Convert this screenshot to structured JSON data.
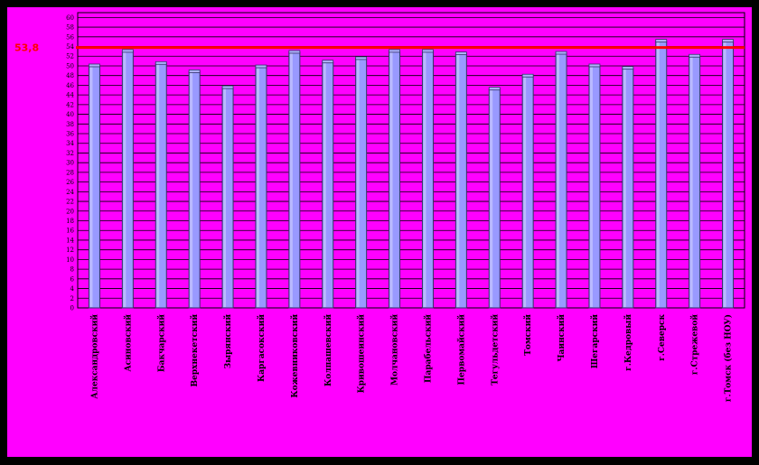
{
  "chart_data": {
    "type": "bar",
    "title": "",
    "xlabel": "",
    "ylabel": "",
    "ylim": [
      0,
      61
    ],
    "y_tick_step": 2,
    "grid": true,
    "legend": "none",
    "categories": [
      "Александровский",
      "Асиновский",
      "Бакчарский",
      "Верхнекетский",
      "Зырянский",
      "Каргасокский",
      "Кожевниковский",
      "Колпашевский",
      "Кривошеинский",
      "Молчановский",
      "Парабельский",
      "Первомайский",
      "Тегульдетский",
      "Томский",
      "Чаинский",
      "Шегарский",
      "г.Кедровый",
      "г.Северск",
      "г.Стрежевой",
      "г.Томск (без НОУ)"
    ],
    "values": [
      50,
      53,
      50.5,
      48.8,
      45.5,
      49.8,
      52.8,
      50.8,
      51.5,
      53,
      53,
      52.5,
      45.2,
      47.9,
      52.6,
      50,
      49.5,
      55.1,
      52,
      55.1
    ],
    "reference_line": {
      "value": 53.8,
      "label": "53,8"
    },
    "colors": {
      "background": "#FF00FF",
      "border": "#000000",
      "bar_fill": "#9999FF",
      "bar_edge": "#333366",
      "grid": "#000000",
      "reference": "#FF0000"
    }
  }
}
